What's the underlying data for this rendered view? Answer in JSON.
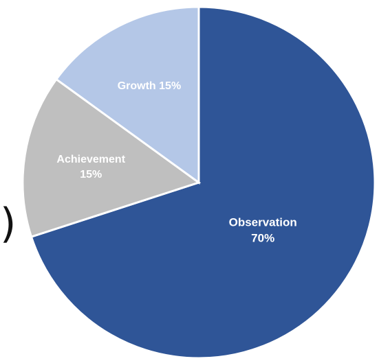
{
  "chart_data": {
    "type": "pie",
    "slices": [
      {
        "label": "Observation",
        "pct_text": "70%",
        "value": 70,
        "color": "#2F5597"
      },
      {
        "label": "Achievement",
        "pct_text": "15%",
        "value": 15,
        "color": "#BFBFBF"
      },
      {
        "label": "Growth",
        "pct_text": "15%",
        "value": 15,
        "color": "#B4C7E7"
      }
    ]
  },
  "edge_text": ")"
}
